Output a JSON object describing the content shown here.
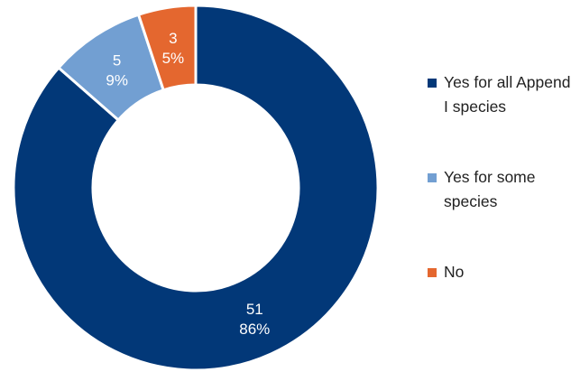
{
  "chart_data": {
    "type": "pie",
    "donut": true,
    "categories": [
      "Yes for all Appendix I species",
      "Yes for some species",
      "No"
    ],
    "values": [
      51,
      5,
      3
    ],
    "percent_labels": [
      "86%",
      "9%",
      "5%"
    ],
    "colors": [
      "#023878",
      "#729fd2",
      "#e4672f"
    ],
    "legend": {
      "position": "right",
      "items": [
        {
          "label": "Yes for all Appendix I species",
          "color": "#023878"
        },
        {
          "label": "Yes for some species",
          "color": "#729fd2"
        },
        {
          "label": "No",
          "color": "#e4672f"
        }
      ]
    },
    "title": ""
  }
}
